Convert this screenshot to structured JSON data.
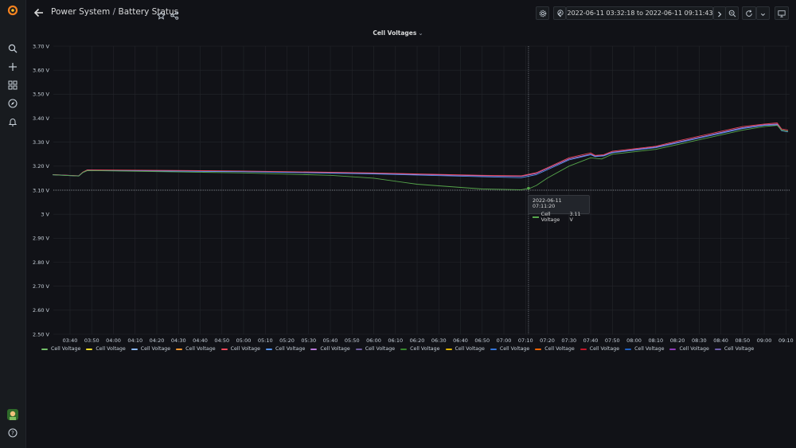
{
  "breadcrumb": {
    "folder": "Power System",
    "separator": "/",
    "dashboard": "Battery Status"
  },
  "time_picker": {
    "range": "2022-06-11 03:32:18 to 2022-06-11 09:11:43"
  },
  "panel": {
    "title": "Cell Voltages"
  },
  "tooltip": {
    "time": "2022-06-11 07:11:20",
    "series": "Cell Voltage",
    "value": "3.11 V",
    "color": "#56a64b"
  },
  "legend": [
    {
      "label": "Cell Voltage",
      "color": "#73bf69"
    },
    {
      "label": "Cell Voltage",
      "color": "#fade2a"
    },
    {
      "label": "Cell Voltage",
      "color": "#8ab8ff"
    },
    {
      "label": "Cell Voltage",
      "color": "#ff9830"
    },
    {
      "label": "Cell Voltage",
      "color": "#f2495c"
    },
    {
      "label": "Cell Voltage",
      "color": "#5794f2"
    },
    {
      "label": "Cell Voltage",
      "color": "#b877d9"
    },
    {
      "label": "Cell Voltage",
      "color": "#705da0"
    },
    {
      "label": "Cell Voltage",
      "color": "#37872d"
    },
    {
      "label": "Cell Voltage",
      "color": "#e0b400"
    },
    {
      "label": "Cell Voltage",
      "color": "#3274d9"
    },
    {
      "label": "Cell Voltage",
      "color": "#fa6400"
    },
    {
      "label": "Cell Voltage",
      "color": "#c4162a"
    },
    {
      "label": "Cell Voltage",
      "color": "#1f60c4"
    },
    {
      "label": "Cell Voltage",
      "color": "#8f3bb8"
    },
    {
      "label": "Cell Voltage",
      "color": "#6e5dab"
    }
  ],
  "chart_data": {
    "type": "line",
    "title": "Cell Voltages",
    "ylim": [
      2.5,
      3.7
    ],
    "y_ticks": [
      "3.70 V",
      "3.60 V",
      "3.50 V",
      "3.40 V",
      "3.30 V",
      "3.20 V",
      "3.10 V",
      "3 V",
      "2.90 V",
      "2.80 V",
      "2.70 V",
      "2.60 V",
      "2.50 V"
    ],
    "x_ticks": [
      "03:40",
      "03:50",
      "04:00",
      "04:10",
      "04:20",
      "04:30",
      "04:40",
      "04:50",
      "05:00",
      "05:10",
      "05:20",
      "05:30",
      "05:40",
      "05:50",
      "06:00",
      "06:10",
      "06:20",
      "06:30",
      "06:40",
      "06:50",
      "07:00",
      "07:10",
      "07:20",
      "07:30",
      "07:40",
      "07:50",
      "08:00",
      "08:10",
      "08:20",
      "08:30",
      "08:40",
      "08:50",
      "09:00",
      "09:10"
    ],
    "x_range": [
      "03:32:18",
      "09:11:43"
    ],
    "grid": true,
    "legend_position": "bottom",
    "threshold": 3.1,
    "series": [
      {
        "name": "Cell Voltage",
        "color": "#b877d9",
        "x": [
          "03:32",
          "03:44",
          "03:46",
          "03:48",
          "05:00",
          "06:00",
          "06:50",
          "07:08",
          "07:15",
          "07:20",
          "07:30",
          "07:40",
          "07:42",
          "07:46",
          "07:50",
          "08:10",
          "08:20",
          "08:40",
          "08:50",
          "09:00",
          "09:06",
          "09:08",
          "09:11"
        ],
        "values": [
          3.165,
          3.16,
          3.175,
          3.183,
          3.178,
          3.17,
          3.16,
          3.158,
          3.17,
          3.19,
          3.23,
          3.25,
          3.242,
          3.245,
          3.258,
          3.28,
          3.3,
          3.34,
          3.36,
          3.372,
          3.375,
          3.35,
          3.345
        ]
      },
      {
        "name": "Cell Voltage",
        "color": "#e8485c",
        "x": [
          "03:32",
          "03:44",
          "03:46",
          "03:48",
          "05:00",
          "06:00",
          "06:50",
          "07:08",
          "07:15",
          "07:20",
          "07:30",
          "07:40",
          "07:42",
          "07:46",
          "07:50",
          "08:10",
          "08:20",
          "08:40",
          "08:50",
          "09:00",
          "09:06",
          "09:08",
          "09:11"
        ],
        "values": [
          3.165,
          3.16,
          3.176,
          3.185,
          3.18,
          3.172,
          3.162,
          3.16,
          3.173,
          3.193,
          3.235,
          3.255,
          3.245,
          3.248,
          3.262,
          3.283,
          3.305,
          3.345,
          3.365,
          3.375,
          3.38,
          3.355,
          3.35
        ]
      },
      {
        "name": "Cell Voltage",
        "color": "#5794f2",
        "x": [
          "03:32",
          "03:44",
          "03:46",
          "03:48",
          "05:00",
          "06:00",
          "06:50",
          "07:08",
          "07:15",
          "07:20",
          "07:30",
          "07:40",
          "07:42",
          "07:46",
          "07:50",
          "08:10",
          "08:20",
          "08:40",
          "08:50",
          "09:00",
          "09:06",
          "09:08",
          "09:11"
        ],
        "values": [
          3.164,
          3.159,
          3.174,
          3.182,
          3.177,
          3.168,
          3.156,
          3.152,
          3.165,
          3.185,
          3.226,
          3.248,
          3.24,
          3.243,
          3.256,
          3.277,
          3.297,
          3.337,
          3.357,
          3.37,
          3.372,
          3.348,
          3.343
        ]
      },
      {
        "name": "Cell Voltage",
        "color": "#56a64b",
        "x": [
          "03:32",
          "03:44",
          "03:46",
          "03:48",
          "05:00",
          "05:40",
          "06:00",
          "06:20",
          "06:50",
          "07:08",
          "07:12",
          "07:15",
          "07:20",
          "07:30",
          "07:40",
          "07:45",
          "07:50",
          "08:10",
          "08:20",
          "08:40",
          "08:50",
          "09:00",
          "09:06",
          "09:08",
          "09:11"
        ],
        "values": [
          3.164,
          3.159,
          3.174,
          3.182,
          3.172,
          3.162,
          3.15,
          3.125,
          3.105,
          3.102,
          3.108,
          3.12,
          3.15,
          3.2,
          3.235,
          3.23,
          3.25,
          3.27,
          3.29,
          3.33,
          3.35,
          3.365,
          3.37,
          3.35,
          3.345
        ]
      }
    ]
  }
}
